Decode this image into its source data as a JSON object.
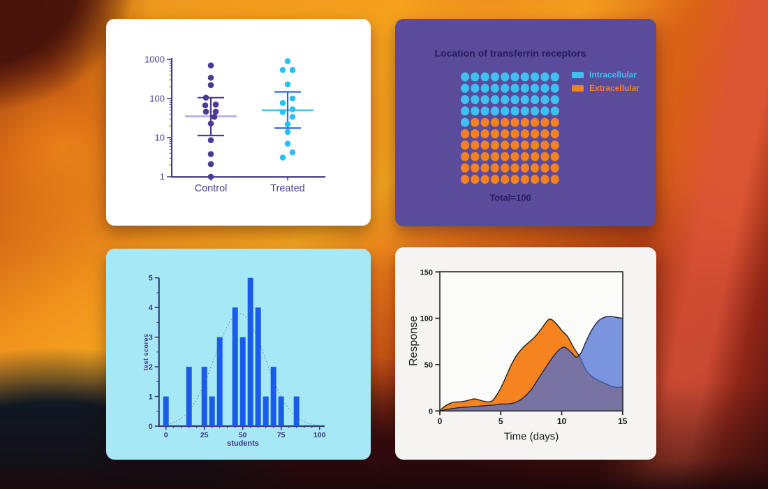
{
  "chart_data": [
    {
      "type": "scatter",
      "panel": "column-scatter-log",
      "yscale": "log",
      "ylim": [
        1,
        1000
      ],
      "yticks": [
        1,
        10,
        100,
        1000
      ],
      "categories": [
        "Control",
        "Treated"
      ],
      "axis_color": "#453c86",
      "label_color": "#4a3e8e",
      "bg": "#ffffff",
      "series": [
        {
          "name": "Control",
          "dot_color": "#4b3a94",
          "whisker_color": "#4b3a94",
          "mean_line_color": "#b5aadf",
          "values": [
            700,
            340,
            220,
            105,
            70,
            67,
            46,
            46,
            34,
            23,
            8.6,
            3.8,
            2.1,
            1
          ],
          "jitter": [
            0,
            0,
            0,
            -7,
            7,
            -8,
            -7,
            7,
            5,
            0,
            0,
            0,
            0,
            0
          ],
          "mean": 35,
          "whisker_low": 11.3,
          "whisker_high": 105
        },
        {
          "name": "Treated",
          "dot_color": "#27c2f3",
          "whisker_color": "#2e6bd8",
          "mean_line_color": "#46c8f3",
          "values": [
            900,
            535,
            535,
            230,
            100,
            77,
            53,
            45,
            34,
            22,
            14,
            7,
            4.2,
            3.1
          ],
          "jitter": [
            0,
            -7,
            7,
            0,
            7,
            -7,
            7,
            -7,
            7,
            0,
            0,
            0,
            7,
            -7
          ],
          "mean": 50,
          "whisker_low": 17.5,
          "whisker_high": 148
        }
      ]
    },
    {
      "type": "pie",
      "representation": "dot-grid-10x10",
      "title": "Location of transferrin receptors",
      "total_label": "Total=100",
      "categories": [
        "Intracellular",
        "Extracellular"
      ],
      "values": [
        41,
        59
      ],
      "colors": [
        "#3ec1f0",
        "#f5821f"
      ],
      "legend_position": "right",
      "bg": "#5a4b9b",
      "title_color": "#20205a"
    },
    {
      "type": "bar",
      "panel": "frequency-histogram",
      "xlabel": "students",
      "ylabel": "test scores",
      "x": [
        0,
        15,
        25,
        30,
        35,
        45,
        50,
        55,
        60,
        65,
        70,
        75,
        85
      ],
      "values": [
        1,
        2,
        2,
        1,
        3,
        4,
        3,
        5,
        4,
        1,
        2,
        1,
        1
      ],
      "xlim": [
        0,
        103
      ],
      "ylim": [
        0,
        5
      ],
      "xticks": [
        0,
        25,
        50,
        75,
        100
      ],
      "xminor_step": 5,
      "yticks": [
        0,
        1,
        2,
        3,
        4,
        5
      ],
      "yminor_step": 0.5,
      "bar_color": "#1a5ce8",
      "curve": {
        "mean": 48,
        "sd": 16.5,
        "peak": 3.8,
        "color": "#8a98aa",
        "style": "dotted"
      },
      "axis_color": "#3a3877",
      "label_color": "#3a3580",
      "bg": "#a7e8f7"
    },
    {
      "type": "area",
      "panel": "overlapping-areas",
      "xlabel": "Time (days)",
      "ylabel": "Response",
      "xlim": [
        0,
        15
      ],
      "xticks": [
        0,
        5,
        10,
        15
      ],
      "ylim": [
        0,
        150
      ],
      "yticks": [
        0,
        50,
        100,
        150
      ],
      "frame": "box",
      "axis_color": "#2a2a2a",
      "label_color": "#161616",
      "bg": "#f5f4f2",
      "series": [
        {
          "name": "orange",
          "color": "#f5831f",
          "outline": "#1e1e1e",
          "x": [
            0,
            0.3,
            0.8,
            1.2,
            1.8,
            2.2,
            2.8,
            3.2,
            3.8,
            4.3,
            4.8,
            5.3,
            5.8,
            6.3,
            6.8,
            7.3,
            7.8,
            8.3,
            8.8,
            9.1,
            9.5,
            10,
            10.5,
            11,
            11.5,
            12,
            12.5,
            13,
            13.5,
            14,
            14.5,
            15
          ],
          "y": [
            0,
            4,
            8,
            9.5,
            10,
            11,
            13,
            12,
            10,
            11,
            20,
            33,
            48,
            60,
            68,
            74,
            80,
            88,
            97,
            99,
            95,
            87,
            80,
            68,
            58,
            44,
            37,
            33,
            30,
            27,
            25.5,
            26
          ]
        },
        {
          "name": "blue",
          "color": "#486ed2",
          "opacity": 0.72,
          "outline": "#23233d",
          "x": [
            0,
            0.5,
            1,
            1.5,
            2,
            2.5,
            3,
            3.5,
            4,
            4.5,
            5,
            5.5,
            6,
            6.5,
            7,
            7.5,
            8,
            8.5,
            9,
            9.5,
            10,
            10.3,
            10.8,
            11.2,
            11.6,
            12,
            12.5,
            13,
            13.5,
            14,
            14.5,
            15
          ],
          "y": [
            0,
            1.5,
            2.5,
            3.5,
            4,
            4.5,
            5,
            5.5,
            6,
            6.5,
            7.5,
            7.5,
            8.5,
            11,
            16,
            23,
            33,
            43,
            53,
            62,
            68,
            68.5,
            63,
            58,
            63,
            75,
            88,
            97,
            101,
            102,
            101,
            100
          ]
        }
      ]
    }
  ]
}
